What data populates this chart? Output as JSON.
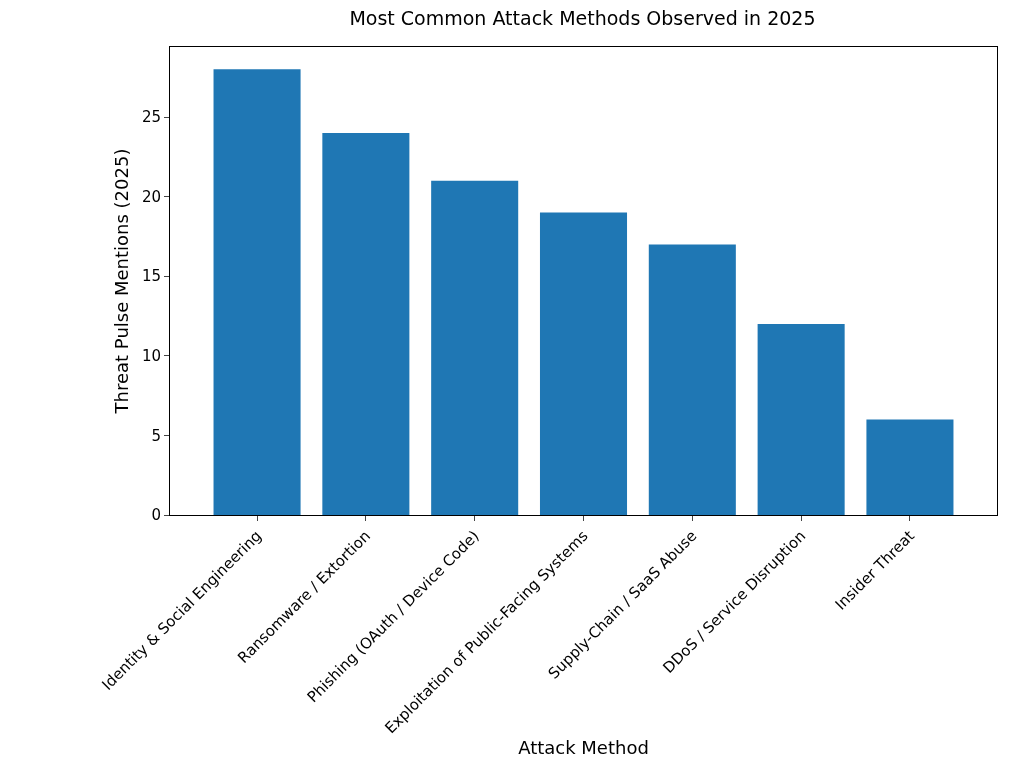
{
  "chart_data": {
    "type": "bar",
    "title": "Most Common Attack Methods Observed in 2025",
    "xlabel": "Attack Method",
    "ylabel": "Threat Pulse Mentions (2025)",
    "categories": [
      "Identity & Social Engineering",
      "Ransomware / Extortion",
      "Phishing (OAuth / Device Code)",
      "Exploitation of Public-Facing Systems",
      "Supply-Chain / SaaS Abuse",
      "DDoS / Service Disruption",
      "Insider Threat"
    ],
    "values": [
      28,
      24,
      21,
      19,
      17,
      12,
      6
    ],
    "color": "#1f77b4",
    "ylim": [
      0,
      29.4
    ],
    "yticks": [
      0,
      5,
      10,
      15,
      20,
      25
    ]
  }
}
